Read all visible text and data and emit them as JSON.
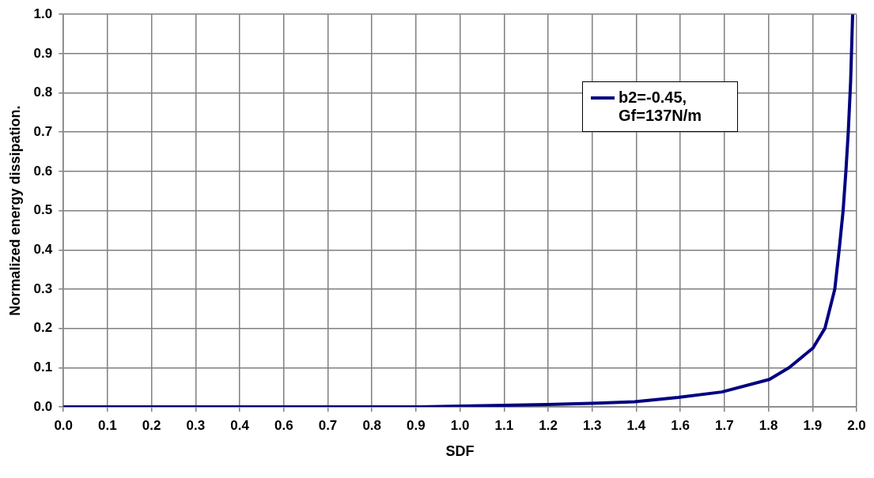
{
  "chart_data": {
    "type": "line",
    "xlabel": "SDF",
    "ylabel": "Normalized energy dissipation.",
    "x": [
      0,
      0.5,
      0.9,
      1.0,
      1.11,
      1.22,
      1.33,
      1.44,
      1.55,
      1.66,
      1.78,
      1.83,
      1.89,
      1.92,
      1.945,
      1.956,
      1.966,
      1.973,
      1.979,
      1.985,
      1.99
    ],
    "series": [
      {
        "name": "b2=-0.45, Gf=137N/m",
        "color": "#000080",
        "values": [
          0,
          0,
          0,
          0.002,
          0.004,
          0.006,
          0.009,
          0.013,
          0.024,
          0.038,
          0.07,
          0.1,
          0.15,
          0.2,
          0.3,
          0.4,
          0.5,
          0.6,
          0.7,
          0.83,
          1.0
        ]
      }
    ],
    "xlim": [
      0,
      2
    ],
    "ylim": [
      0,
      1
    ],
    "xticks": [
      {
        "value": 0,
        "label": "0.0"
      },
      {
        "value": 0.1111,
        "label": "0.1"
      },
      {
        "value": 0.2222,
        "label": "0.2"
      },
      {
        "value": 0.3333,
        "label": "0.3"
      },
      {
        "value": 0.4444,
        "label": "0.4"
      },
      {
        "value": 0.5556,
        "label": "0.6"
      },
      {
        "value": 0.6667,
        "label": "0.7"
      },
      {
        "value": 0.7778,
        "label": "0.8"
      },
      {
        "value": 0.8889,
        "label": "0.9"
      },
      {
        "value": 1,
        "label": "1.0"
      },
      {
        "value": 1.1111,
        "label": "1.1"
      },
      {
        "value": 1.2222,
        "label": "1.2"
      },
      {
        "value": 1.3333,
        "label": "1.3"
      },
      {
        "value": 1.4444,
        "label": "1.4"
      },
      {
        "value": 1.5556,
        "label": "1.6"
      },
      {
        "value": 1.6667,
        "label": "1.7"
      },
      {
        "value": 1.7778,
        "label": "1.8"
      },
      {
        "value": 1.8889,
        "label": "1.9"
      },
      {
        "value": 2,
        "label": "2.0"
      }
    ],
    "yticks": [
      {
        "value": 0,
        "label": "0.0"
      },
      0.1,
      0.2,
      0.3,
      0.4,
      0.5,
      0.6,
      0.7,
      0.8,
      0.9,
      {
        "value": 1,
        "label": "1.0"
      }
    ],
    "grid": true,
    "legend": "top right",
    "marker": "none",
    "line_style": "solid"
  }
}
